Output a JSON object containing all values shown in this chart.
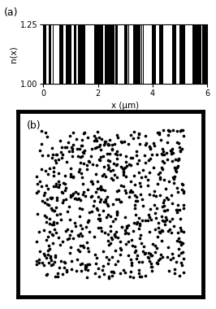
{
  "title_a": "(a)",
  "title_b": "(b)",
  "xlabel_a": "x (µm)",
  "ylabel_a": "n(x)",
  "xlim_a": [
    0,
    6
  ],
  "ylim_a": [
    1.0,
    1.25
  ],
  "yticks_a": [
    1.0,
    1.25
  ],
  "xticks_a": [
    0,
    2,
    4,
    6
  ],
  "n_low": 1.0,
  "n_high": 1.25,
  "seed_1d": 42,
  "seed_2d": 137,
  "num_dots": 700,
  "dot_size": 7,
  "fig_bg": "#ffffff",
  "bar_color_black": "#000000",
  "bar_color_white": "#ffffff"
}
